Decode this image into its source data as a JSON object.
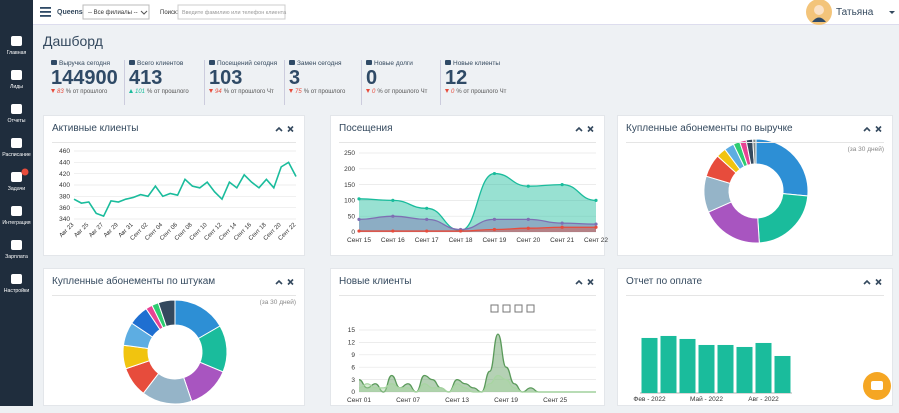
{
  "topbar": {
    "brand": "Queens",
    "branch_select": "-- Все филиалы --",
    "search_label": "Поиск:",
    "search_placeholder": "Введите фамилию или телефон клиента",
    "user": "Татьяна"
  },
  "sidebar": [
    "Главная",
    "Лиды",
    "Отчеты",
    "Расписание",
    "Задачи",
    "Интеграция",
    "Зарплата",
    "Настройки"
  ],
  "page_title": "Дашборд",
  "stats": [
    {
      "label": "Выручка сегодня",
      "value": 144900,
      "change": 83,
      "note": "% от прошлого",
      "trend": "down"
    },
    {
      "label": "Всего клиентов",
      "value": 413,
      "change": 101,
      "note": "% от прошлого",
      "trend": "up"
    },
    {
      "label": "Посещений сегодня",
      "value": 103,
      "change": 94,
      "note": "% от прошлого Чт",
      "trend": "down"
    },
    {
      "label": "Замен сегодня",
      "value": 3,
      "change": 75,
      "note": "% от прошлого",
      "trend": "down"
    },
    {
      "label": "Новые долги",
      "value": 0,
      "change": 0,
      "note": "% от прошлого Чт",
      "trend": "down"
    },
    {
      "label": "Новые клиенты",
      "value": 12,
      "change": 0,
      "note": "% от прошлого Чт",
      "trend": "down"
    }
  ],
  "charts": [
    {
      "type": "line",
      "title": "Активные клиенты",
      "rotate_labels": true,
      "color": "#1abc9c",
      "categories": [
        "Авг 23",
        null,
        "Авг 25",
        null,
        "Авг 27",
        null,
        "Авг 29",
        null,
        "Авг 31",
        null,
        "Сент 02",
        null,
        "Сент 04",
        null,
        "Сент 06",
        null,
        "Сент 08",
        null,
        "Сент 10",
        null,
        "Сент 12",
        null,
        "Сент 14",
        null,
        "Сент 16",
        null,
        "Сент 18",
        null,
        "Сент 20",
        null,
        "Сент 22"
      ],
      "values": [
        375,
        368,
        370,
        350,
        345,
        372,
        370,
        375,
        378,
        383,
        380,
        398,
        380,
        385,
        382,
        410,
        398,
        395,
        405,
        388,
        375,
        405,
        395,
        418,
        405,
        395,
        410,
        395,
        432,
        440,
        415
      ],
      "ylim": [
        340,
        460
      ],
      "yticks": [
        340,
        360,
        380,
        400,
        420,
        440,
        460
      ],
      "grid": true
    },
    {
      "type": "area",
      "title": "Посещения",
      "categories": [
        "Сент 15",
        "Сент 16",
        "Сент 17",
        "Сент 18",
        "Сент 19",
        "Сент 20",
        "Сент 21",
        "Сент 22"
      ],
      "series": [
        {
          "color": "#1abc9c",
          "values": [
            105,
            100,
            75,
            5,
            185,
            145,
            150,
            100
          ]
        },
        {
          "color": "#7e6fb3",
          "values": [
            40,
            50,
            40,
            8,
            40,
            40,
            28,
            25
          ]
        },
        {
          "color": "#e74c3c",
          "values": [
            3,
            3,
            3,
            3,
            8,
            12,
            15,
            15
          ]
        }
      ],
      "ylim": [
        0,
        250
      ],
      "yticks": [
        0,
        50,
        100,
        150,
        200,
        250
      ],
      "grid": true
    },
    {
      "type": "pie",
      "title": "Купленные абонементы по выручке",
      "subtitle": "(за 30 дней)",
      "values": [
        26,
        22,
        19,
        11,
        7,
        3,
        3,
        2,
        2,
        2,
        1
      ],
      "colors": [
        "#2d8fd5",
        "#1abc9c",
        "#a855c0",
        "#95b4c8",
        "#e74c3c",
        "#f1c40f",
        "#5dade2",
        "#2ecc71",
        "#e84393",
        "#34495e",
        "#7f8c8d"
      ]
    },
    {
      "type": "pie",
      "title": "Купленные абонементы по штукам",
      "subtitle": "(за 30 дней)",
      "values": [
        16,
        14,
        13,
        15,
        9,
        7,
        7,
        6,
        2,
        2,
        5
      ],
      "colors": [
        "#2d8fd5",
        "#1abc9c",
        "#a855c0",
        "#95b4c8",
        "#e74c3c",
        "#f1c40f",
        "#5dade2",
        "#1f6fd1",
        "#e84393",
        "#2ecc71",
        "#34495e"
      ]
    },
    {
      "type": "area",
      "title": "Новые клиенты",
      "toolbar": true,
      "categories": [
        "Сент 01",
        null,
        null,
        null,
        null,
        null,
        "Сент 07",
        null,
        null,
        null,
        null,
        null,
        "Сент 13",
        null,
        null,
        null,
        null,
        null,
        "Сент 19",
        null,
        null,
        null,
        null,
        null,
        "Сент 25",
        null,
        null,
        null,
        null,
        null
      ],
      "series": [
        {
          "color": "#5a9a5a",
          "values": [
            3,
            1,
            2,
            0,
            4,
            1,
            2,
            0,
            4,
            3,
            1,
            0,
            3,
            2,
            1,
            0,
            5,
            14,
            6,
            2,
            0,
            1,
            0,
            0,
            0,
            0,
            0,
            0,
            0,
            0
          ]
        },
        {
          "color": "#a8d5a2",
          "values": [
            1,
            2,
            1,
            1,
            2,
            1,
            1,
            0,
            2,
            1,
            1,
            0,
            2,
            1,
            0,
            0,
            2,
            4,
            3,
            1,
            0,
            0,
            0,
            0,
            0,
            0,
            0,
            0,
            0,
            0
          ]
        }
      ],
      "ylim": [
        0,
        15
      ],
      "yticks": [
        0,
        3,
        6,
        9,
        12,
        15
      ],
      "grid": true
    },
    {
      "type": "bar",
      "title": "Отчет по оплате",
      "color": "#1abc9c",
      "categories": [
        "Фев - 2022",
        null,
        null,
        "Май - 2022",
        null,
        null,
        "Авг - 2022",
        null
      ],
      "values": [
        55,
        57,
        54,
        48,
        48,
        46,
        50,
        37
      ]
    }
  ]
}
